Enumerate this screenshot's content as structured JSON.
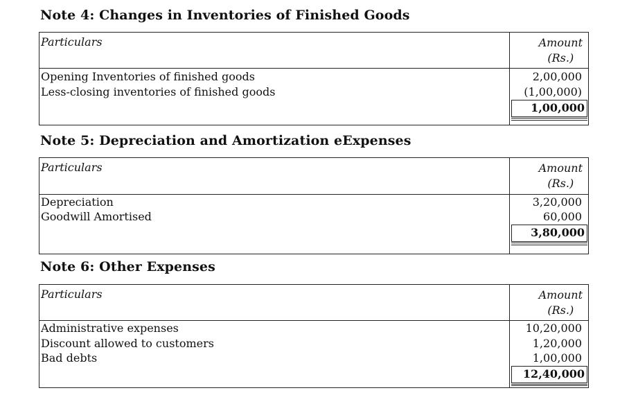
{
  "notes": [
    {
      "title": "Note 4: Changes in Inventories of Finished Goods",
      "header": {
        "particulars": "Particulars",
        "amount_line1": "Amount",
        "amount_line2": "(Rs.)"
      },
      "rows": [
        {
          "label": "Opening Inventories of finished goods",
          "amount": "2,00,000"
        },
        {
          "label": "Less-closing inventories of finished goods",
          "amount": "(1,00,000)"
        }
      ],
      "total": "1,00,000"
    },
    {
      "title": "Note 5: Depreciation and Amortization eExpenses",
      "header": {
        "particulars": "Particulars",
        "amount_line1": "Amount",
        "amount_line2": "(Rs.)"
      },
      "rows": [
        {
          "label": "Depreciation",
          "amount": "3,20,000"
        },
        {
          "label": "Goodwill Amortised",
          "amount": "60,000"
        }
      ],
      "total": "3,80,000"
    },
    {
      "title": "Note 6: Other Expenses",
      "header": {
        "particulars": "Particulars",
        "amount_line1": "Amount",
        "amount_line2": "(Rs.)"
      },
      "rows": [
        {
          "label": "Administrative expenses",
          "amount": "10,20,000"
        },
        {
          "label": "Discount allowed to customers",
          "amount": "1,20,000"
        },
        {
          "label": "Bad debts",
          "amount": "1,00,000"
        }
      ],
      "total": "12,40,000"
    }
  ]
}
